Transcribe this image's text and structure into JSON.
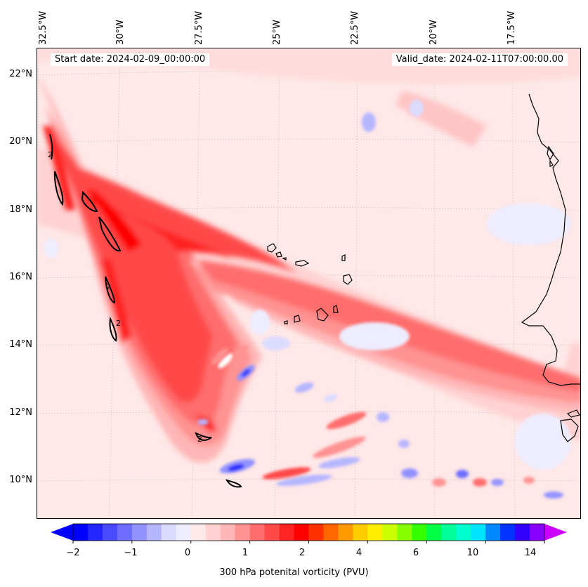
{
  "map": {
    "start_date": "Start date: 2024-02-09_00:00:00",
    "valid_date": "Valid_date: 2024-02-11T07:00:00.00",
    "longitude_labels": [
      "32.5°W",
      "30°W",
      "27.5°W",
      "25°W",
      "22.5°W",
      "20°W",
      "17.5°W"
    ],
    "latitude_labels": [
      "22°N",
      "20°N",
      "18°N",
      "16°N",
      "14°N",
      "12°N",
      "10°N"
    ],
    "contour_label": "2",
    "colors": {
      "background_low_positive": "#ffe8e8",
      "positive_max": "#ff0000",
      "negative_max": "#0000ff",
      "coastline": "#000000"
    }
  },
  "colorbar": {
    "title": "300 hPa potenital vorticity (PVU)",
    "tick_labels": [
      "−2",
      "−1",
      "0",
      "1",
      "2",
      "4",
      "6",
      "10",
      "14"
    ],
    "colors": [
      "#0000ff",
      "#2424ff",
      "#4949ff",
      "#6d6dff",
      "#9292ff",
      "#b6b6ff",
      "#dbdbff",
      "#ededff",
      "#ffe8e8",
      "#ffd2d2",
      "#ffb6b6",
      "#ff9292",
      "#ff6d6d",
      "#ff4949",
      "#ff2424",
      "#ff0000",
      "#ff3300",
      "#ff6600",
      "#ff9900",
      "#ffcc00",
      "#ffee00",
      "#ccff00",
      "#88ff00",
      "#33ff00",
      "#00ff44",
      "#00ff99",
      "#00ffcc",
      "#00e5ff",
      "#0088ff",
      "#0033ff",
      "#3300ff",
      "#8800ff"
    ],
    "extend_low": "#0000ff",
    "extend_high": "#cc00ff"
  }
}
